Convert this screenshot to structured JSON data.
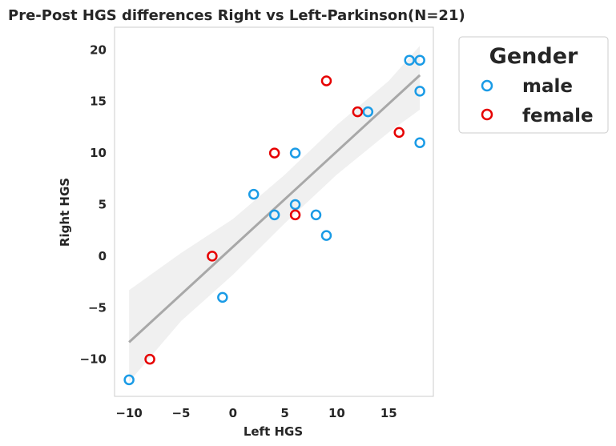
{
  "chart_data": {
    "type": "scatter",
    "title": "Pre-Post HGS differences Right vs Left-Parkinson(N=21)",
    "xlabel": "Left HGS",
    "ylabel": "Right HGS",
    "xlim": [
      -11.4,
      19.3
    ],
    "ylim": [
      -13.6,
      22.2
    ],
    "xticks": [
      -10,
      -5,
      0,
      5,
      10,
      15
    ],
    "yticks": [
      -10,
      -5,
      0,
      5,
      10,
      15,
      20
    ],
    "grid": false,
    "legend": {
      "title": "Gender",
      "placement": "outside-top-right",
      "entries": [
        "male",
        "female"
      ]
    },
    "series": [
      {
        "name": "male",
        "color": "#1a9be6",
        "points": [
          [
            -10,
            -12
          ],
          [
            -1,
            -4
          ],
          [
            2,
            6
          ],
          [
            4,
            4
          ],
          [
            6,
            5
          ],
          [
            6,
            10
          ],
          [
            8,
            4
          ],
          [
            9,
            2
          ],
          [
            13,
            14
          ],
          [
            17,
            19
          ],
          [
            18,
            19
          ],
          [
            18,
            16
          ],
          [
            18,
            11
          ]
        ]
      },
      {
        "name": "female",
        "color": "#e60000",
        "points": [
          [
            -8,
            -10
          ],
          [
            -2,
            0
          ],
          [
            4,
            10
          ],
          [
            6,
            4
          ],
          [
            9,
            17
          ],
          [
            12,
            14
          ],
          [
            16,
            12
          ]
        ]
      }
    ],
    "regression": {
      "x_range": [
        -10,
        18
      ],
      "intercept": 0.9,
      "slope": 0.925,
      "line_color": "#a8a8a8",
      "ci_color": "#f0f0f0",
      "ci_band": [
        [
          -10,
          -3.3,
          -12.2
        ],
        [
          -5,
          0.3,
          -6.3
        ],
        [
          0,
          3.6,
          -1.8
        ],
        [
          5,
          7.9,
          3.2
        ],
        [
          10,
          12.7,
          7.9
        ],
        [
          15,
          17.0,
          12.0
        ],
        [
          18,
          20.4,
          14.2
        ]
      ]
    }
  }
}
